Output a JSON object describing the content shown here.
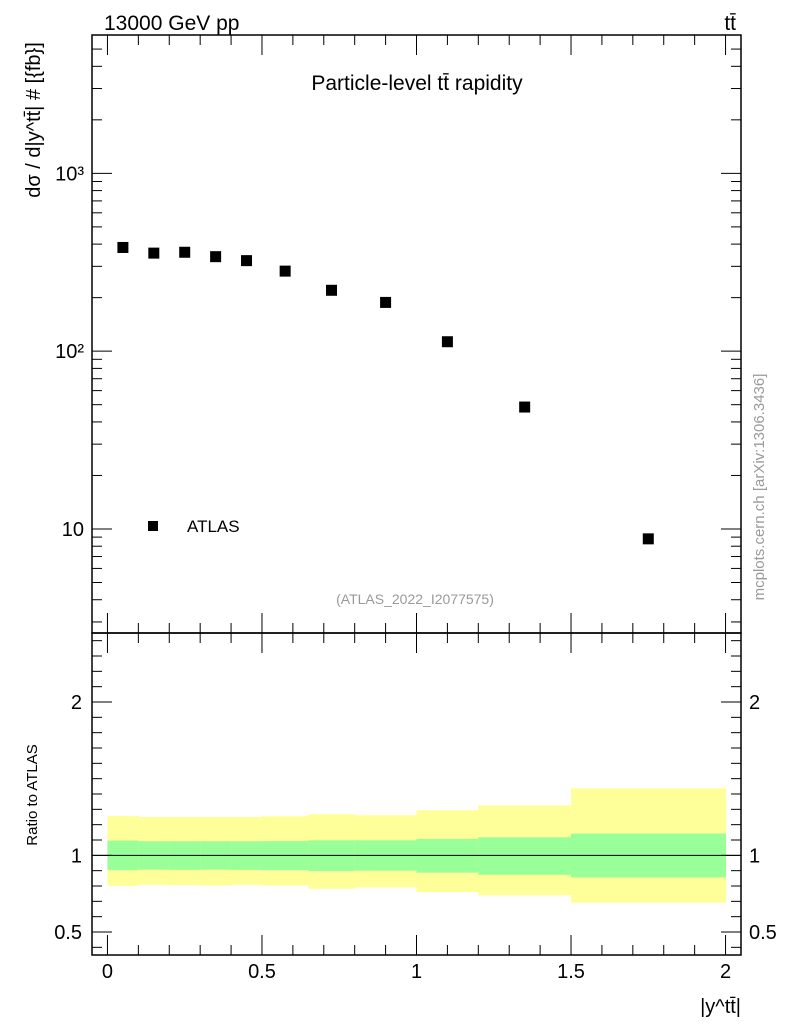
{
  "header": {
    "energy_label": "13000 GeV pp",
    "process_label": "tt̄"
  },
  "side_label": "mcplots.cern.ch [arXiv:1306.3436]",
  "colors": {
    "band_inner": "#99ff99",
    "band_outer": "#ffff99",
    "marker": "#000000"
  },
  "chart_data": [
    {
      "type": "scatter",
      "title": "Particle-level tt̄ rapidity",
      "analysis_id": "(ATLAS_2022_I2077575)",
      "ylabel": "dσ / d|y^tt̄| # [{fb}]",
      "xlabel": "",
      "yscale": "log",
      "ylim": [
        2.6,
        6000
      ],
      "xlim": [
        -0.05,
        2.05
      ],
      "y_ticks": [
        {
          "value": 10,
          "label": "10"
        },
        {
          "value": 100,
          "label": "10²"
        },
        {
          "value": 1000,
          "label": "10³"
        }
      ],
      "legend": {
        "entry": "ATLAS",
        "position": "bottom-left"
      },
      "series": [
        {
          "name": "ATLAS",
          "x": [
            0.05,
            0.15,
            0.25,
            0.35,
            0.45,
            0.575,
            0.725,
            0.9,
            1.1,
            1.35,
            1.75
          ],
          "x_low": [
            0.0,
            0.1,
            0.2,
            0.3,
            0.4,
            0.5,
            0.65,
            0.8,
            1.0,
            1.2,
            1.5
          ],
          "x_high": [
            0.1,
            0.2,
            0.3,
            0.4,
            0.5,
            0.65,
            0.8,
            1.0,
            1.2,
            1.5,
            2.0
          ],
          "values": [
            383,
            356,
            360,
            340,
            323,
            282,
            220,
            188,
            113,
            48.5,
            8.8
          ]
        }
      ]
    },
    {
      "type": "area",
      "title": "",
      "xlabel": "|y^tt̄|",
      "ylabel": "Ratio to ATLAS",
      "ylim": [
        0.35,
        2.45
      ],
      "xlim": [
        -0.05,
        2.05
      ],
      "x_ticks": [
        {
          "value": 0,
          "label": "0"
        },
        {
          "value": 0.5,
          "label": "0.5"
        },
        {
          "value": 1,
          "label": "1"
        },
        {
          "value": 1.5,
          "label": "1.5"
        },
        {
          "value": 2,
          "label": "2"
        }
      ],
      "y_ticks": [
        {
          "value": 0.5,
          "label": "0.5"
        },
        {
          "value": 1,
          "label": "1"
        },
        {
          "value": 2,
          "label": "2"
        }
      ],
      "reference_line": 1,
      "bins_low": [
        0.0,
        0.1,
        0.2,
        0.3,
        0.4,
        0.5,
        0.65,
        0.8,
        1.0,
        1.2,
        1.5
      ],
      "bins_high": [
        0.1,
        0.2,
        0.3,
        0.4,
        0.5,
        0.65,
        0.8,
        1.0,
        1.2,
        1.5,
        2.0
      ],
      "inner_band": {
        "low": [
          0.903,
          0.907,
          0.905,
          0.907,
          0.905,
          0.903,
          0.897,
          0.9,
          0.887,
          0.873,
          0.856
        ],
        "high": [
          1.096,
          1.092,
          1.092,
          1.092,
          1.092,
          1.093,
          1.098,
          1.098,
          1.107,
          1.118,
          1.142
        ]
      },
      "outer_band": {
        "low": [
          0.801,
          0.807,
          0.805,
          0.803,
          0.807,
          0.803,
          0.782,
          0.791,
          0.76,
          0.739,
          0.691
        ],
        "high": [
          1.256,
          1.25,
          1.25,
          1.25,
          1.25,
          1.255,
          1.269,
          1.262,
          1.294,
          1.326,
          1.437
        ]
      }
    }
  ]
}
